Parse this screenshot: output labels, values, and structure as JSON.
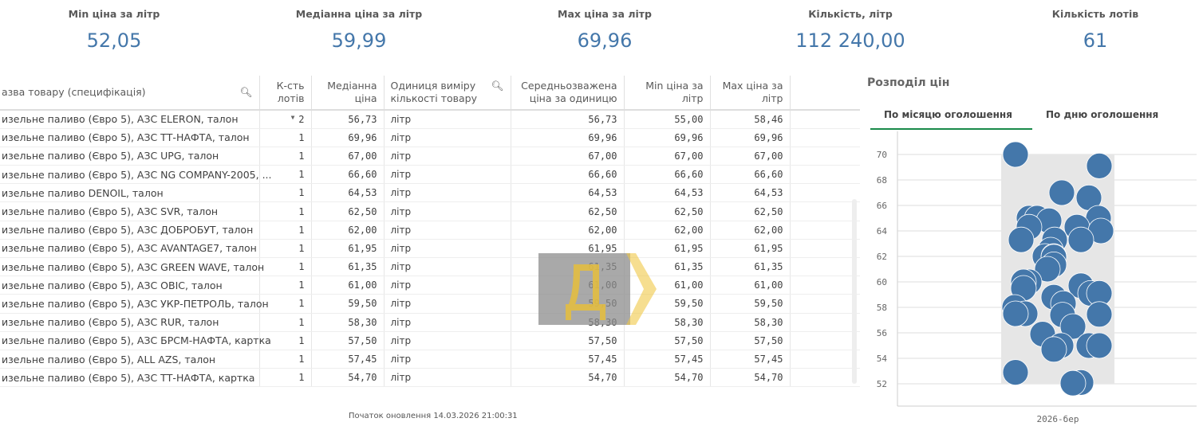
{
  "kpis": [
    {
      "title": "Min ціна за літр",
      "value": "52,05"
    },
    {
      "title": "Медіанна ціна за літр",
      "value": "59,99"
    },
    {
      "title": "Max ціна за літр",
      "value": "69,96"
    },
    {
      "title": "Кількість, літр",
      "value": "112 240,00"
    },
    {
      "title": "Кількість лотів",
      "value": "61"
    }
  ],
  "table": {
    "headers": [
      "азва товару (специфікація)",
      "К-сть лотів",
      "Медіанна ціна",
      "Одиниця виміру кількості товару",
      "Середньозважена ціна за одиницю",
      "Min ціна за літр",
      "Max ціна за літр"
    ],
    "rows": [
      [
        "изельне паливо (Євро 5), АЗС ELERON, талон",
        "2",
        "56,73",
        "літр",
        "56,73",
        "55,00",
        "58,46"
      ],
      [
        "изельне паливо (Євро 5), АЗС ТТ-НАФТА, талон",
        "1",
        "69,96",
        "літр",
        "69,96",
        "69,96",
        "69,96"
      ],
      [
        "изельне паливо (Євро 5), АЗС UPG, талон",
        "1",
        "67,00",
        "літр",
        "67,00",
        "67,00",
        "67,00"
      ],
      [
        "изельне паливо (Євро 5), АЗС NG COMPANY-2005, ...",
        "1",
        "66,60",
        "літр",
        "66,60",
        "66,60",
        "66,60"
      ],
      [
        "изельне паливо DENOIL, талон",
        "1",
        "64,53",
        "літр",
        "64,53",
        "64,53",
        "64,53"
      ],
      [
        "изельне паливо (Євро 5), АЗС SVR, талон",
        "1",
        "62,50",
        "літр",
        "62,50",
        "62,50",
        "62,50"
      ],
      [
        "изельне паливо (Євро 5), АЗС ДОБРОБУТ, талон",
        "1",
        "62,00",
        "літр",
        "62,00",
        "62,00",
        "62,00"
      ],
      [
        "изельне паливо (Євро 5), АЗС AVANTAGE7, талон",
        "1",
        "61,95",
        "літр",
        "61,95",
        "61,95",
        "61,95"
      ],
      [
        "изельне паливо (Євро 5), АЗС GREEN WAVE, талон",
        "1",
        "61,35",
        "літр",
        "61,35",
        "61,35",
        "61,35"
      ],
      [
        "изельне паливо (Євро 5), АЗС OBIC, талон",
        "1",
        "61,00",
        "літр",
        "61,00",
        "61,00",
        "61,00"
      ],
      [
        "изельне паливо (Євро 5), АЗС УКР-ПЕТРОЛЬ, талон",
        "1",
        "59,50",
        "літр",
        "59,50",
        "59,50",
        "59,50"
      ],
      [
        "изельне паливо (Євро 5), АЗС RUR, талон",
        "1",
        "58,30",
        "літр",
        "58,30",
        "58,30",
        "58,30"
      ],
      [
        "изельне паливо (Євро 5), АЗС БРСМ-НАФТА, картка",
        "1",
        "57,50",
        "літр",
        "57,50",
        "57,50",
        "57,50"
      ],
      [
        "изельне паливо (Євро 5), ALL AZS, талон",
        "1",
        "57,45",
        "літр",
        "57,45",
        "57,45",
        "57,45"
      ],
      [
        "изельне паливо (Євро 5), АЗС ТТ-НАФТА, картка",
        "1",
        "54,70",
        "літр",
        "54,70",
        "54,70",
        "54,70"
      ]
    ]
  },
  "footer": "Початок оновлення 14.03.2026 21:00:31",
  "watermark": "Д",
  "chart": {
    "title": "Розподіл цін",
    "tabs": [
      "По місяцю оголошення",
      "По дню оголошення"
    ],
    "active_tab": 0
  },
  "chart_data": {
    "type": "scatter",
    "categories": [
      "2026-бер"
    ],
    "yticks": [
      "52",
      "54",
      "56",
      "58",
      "60",
      "62",
      "64",
      "66",
      "68",
      "70"
    ],
    "ylim": [
      50.5,
      72
    ],
    "grid": true,
    "color": "#4477aa",
    "values": [
      70,
      69.1,
      67,
      66.6,
      65,
      65,
      65,
      64.8,
      64.3,
      64.3,
      64,
      63.3,
      63.3,
      63.3,
      62.5,
      62,
      62,
      61.95,
      61.35,
      61,
      60,
      60,
      59.7,
      59.5,
      59.1,
      59.1,
      58.8,
      58.3,
      58,
      57.5,
      57.5,
      57.45,
      57.4,
      56.5,
      55.9,
      55,
      55,
      55,
      54.7,
      52.9,
      52.1,
      52.05
    ]
  }
}
